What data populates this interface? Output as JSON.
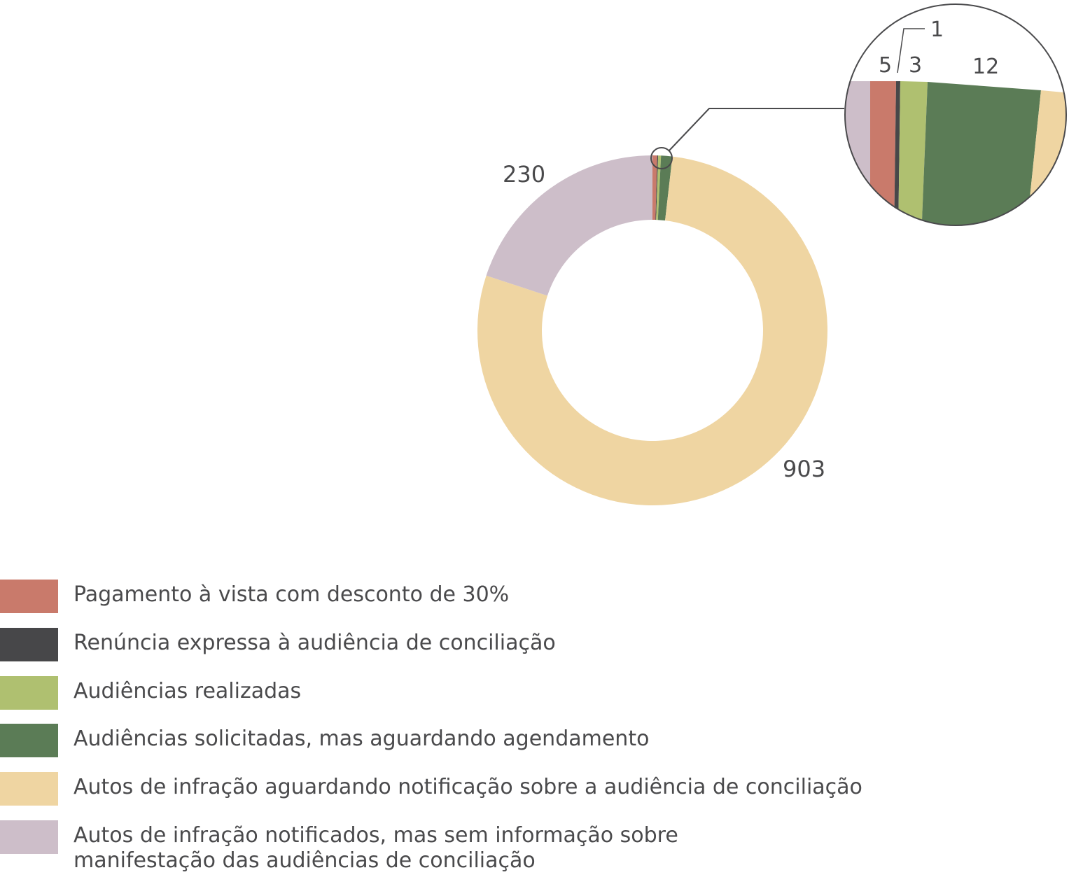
{
  "chart_data": {
    "type": "pie",
    "variant": "donut",
    "title": "",
    "legend_position": "bottom-left",
    "slices": [
      {
        "label": "Pagamento à vista com desconto de 30%",
        "value": 5,
        "color": "#c97a6b",
        "data_label": "5"
      },
      {
        "label": "Renúncia expressa à audiência de conciliação",
        "value": 1,
        "color": "#474749",
        "data_label": "1"
      },
      {
        "label": "Audiências realizadas",
        "value": 3,
        "color": "#afc070",
        "data_label": "3"
      },
      {
        "label": "Audiências solicitadas, mas aguardando agendamento",
        "value": 12,
        "color": "#5b7c56",
        "data_label": "12"
      },
      {
        "label": "Autos de infração aguardando notificação sobre a audiência de conciliação",
        "value": 903,
        "color": "#efd5a2",
        "data_label": "903"
      },
      {
        "label": "Autos de infração notificados, mas sem informação sobre manifestação das audiências de conciliação",
        "label_lines": [
          "Autos de infração notificados, mas sem informação sobre",
          "manifestação das audiências de conciliação"
        ],
        "value": 230,
        "color": "#cdbec9",
        "data_label": "230"
      }
    ],
    "zoom_inset": true
  }
}
